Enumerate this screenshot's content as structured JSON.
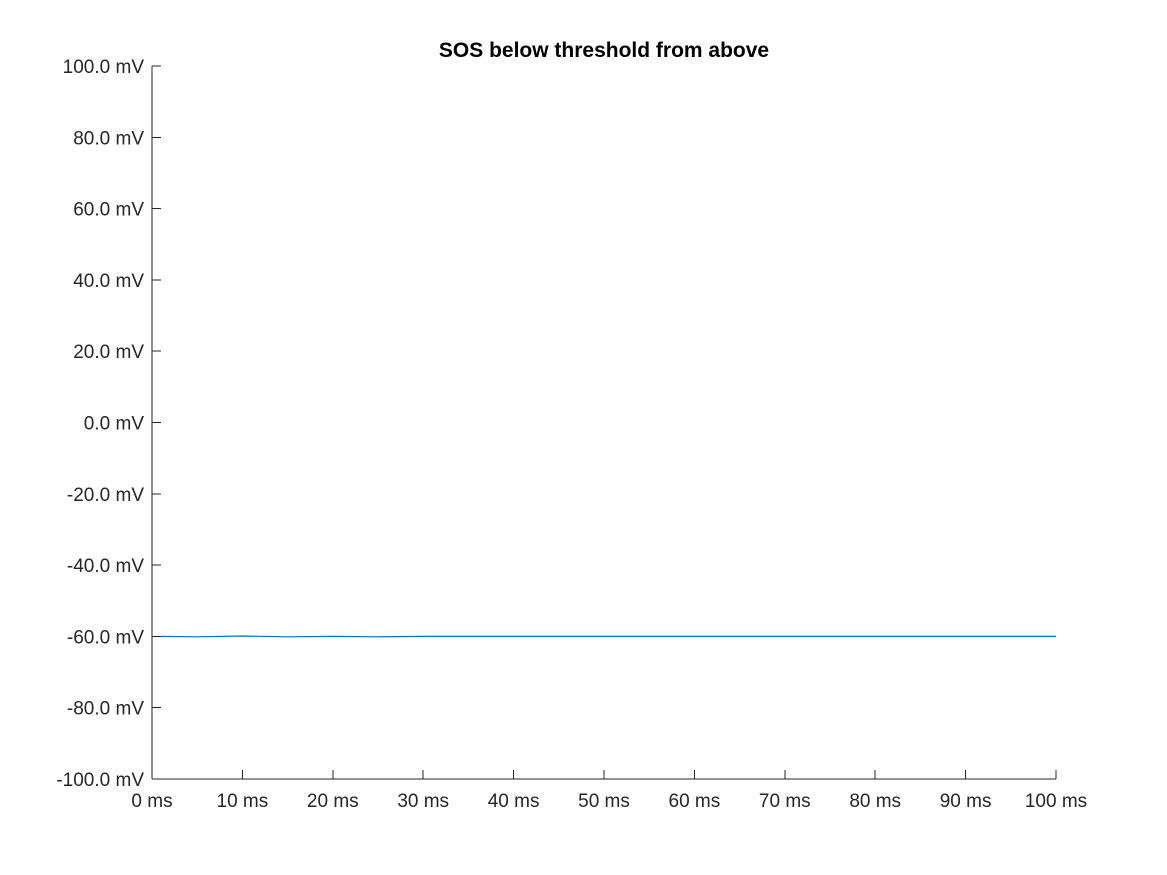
{
  "chart_data": {
    "type": "line",
    "title": "SOS below threshold from above",
    "xlabel": "",
    "ylabel": "",
    "xlim": [
      0,
      100
    ],
    "ylim": [
      -100,
      100
    ],
    "grid": false,
    "x_ticks": [
      0,
      10,
      20,
      30,
      40,
      50,
      60,
      70,
      80,
      90,
      100
    ],
    "x_tick_labels": [
      "0 ms",
      "10 ms",
      "20 ms",
      "30 ms",
      "40 ms",
      "50 ms",
      "60 ms",
      "70 ms",
      "80 ms",
      "90 ms",
      "100 ms"
    ],
    "y_ticks": [
      100,
      80,
      60,
      40,
      20,
      0,
      -20,
      -40,
      -60,
      -80,
      -100
    ],
    "y_tick_labels": [
      "100.0 mV",
      "80.0 mV",
      "60.0 mV",
      "40.0 mV",
      "20.0 mV",
      "0.0 mV",
      "-20.0 mV",
      "-40.0 mV",
      "-60.0 mV",
      "-80.0 mV",
      "-100.0 mV"
    ],
    "series": [
      {
        "color": "#0072BD",
        "x": [
          1,
          5,
          10,
          15,
          20,
          25,
          30,
          40,
          50,
          60,
          70,
          80,
          90,
          100
        ],
        "y": [
          -60.0,
          -60.1,
          -59.9,
          -60.1,
          -60.0,
          -60.1,
          -60.0,
          -60.0,
          -60.0,
          -60.0,
          -60.0,
          -60.0,
          -60.0,
          -60.0
        ]
      }
    ]
  }
}
